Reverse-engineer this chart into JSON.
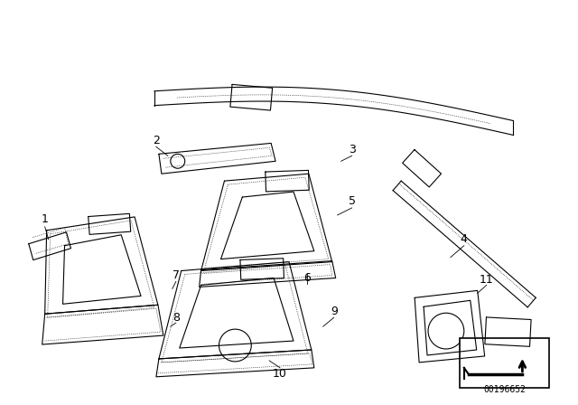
{
  "background_color": "#ffffff",
  "part_number": "00196652",
  "line_color": "#000000",
  "lw_main": 0.8,
  "lw_dot": 0.5
}
